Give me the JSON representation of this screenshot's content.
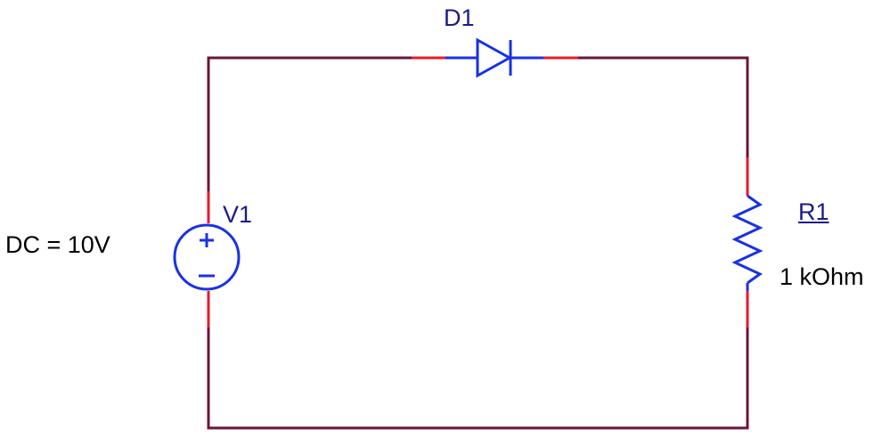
{
  "colors": {
    "wire": "#6B1439",
    "pin": "#E8192C",
    "component": "#1832E6",
    "label": "#1A1A8C",
    "value_text": "#000000",
    "background": "#FFFFFF"
  },
  "components": {
    "diode": {
      "ref": "D1",
      "icon": "diode-symbol"
    },
    "source": {
      "ref": "V1",
      "value": "DC = 10V",
      "plus_sign": "+",
      "minus_sign": "−",
      "icon": "dc-voltage-source-symbol"
    },
    "resistor": {
      "ref": "R1",
      "value": "1 kOhm",
      "icon": "resistor-symbol"
    }
  }
}
